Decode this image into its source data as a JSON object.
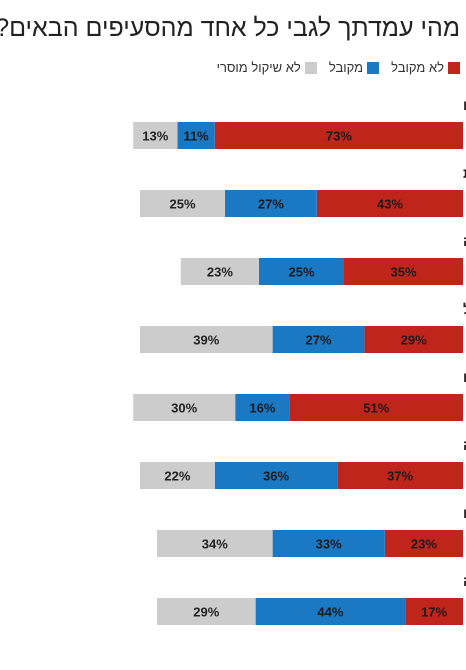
{
  "chart_data": {
    "type": "bar",
    "orientation": "horizontal",
    "stacked": true,
    "title": "מהי עמדתך לגבי כל אחד מהסעיפים הבאים?",
    "categories": [
      "רומן מחוץ לנישואים",
      "הומוסקסואליות",
      "הפלה",
      "שתיית אלכוהול",
      "הימורים",
      "יחסי מין לפני החתונה",
      "גירושים",
      "שימוש באמצעי מניעה"
    ],
    "series": [
      {
        "name": "לא מקובל",
        "color": "#c0251c",
        "values": [
          73,
          43,
          35,
          29,
          51,
          37,
          23,
          17
        ]
      },
      {
        "name": "מקובל",
        "color": "#1b79c4",
        "values": [
          11,
          27,
          25,
          27,
          16,
          36,
          33,
          44
        ]
      },
      {
        "name": "לא שיקול מוסרי",
        "color": "#cccccc",
        "values": [
          13,
          25,
          23,
          39,
          30,
          22,
          34,
          29
        ]
      }
    ],
    "value_suffix": "%",
    "legend": "top-right",
    "grid": false
  }
}
